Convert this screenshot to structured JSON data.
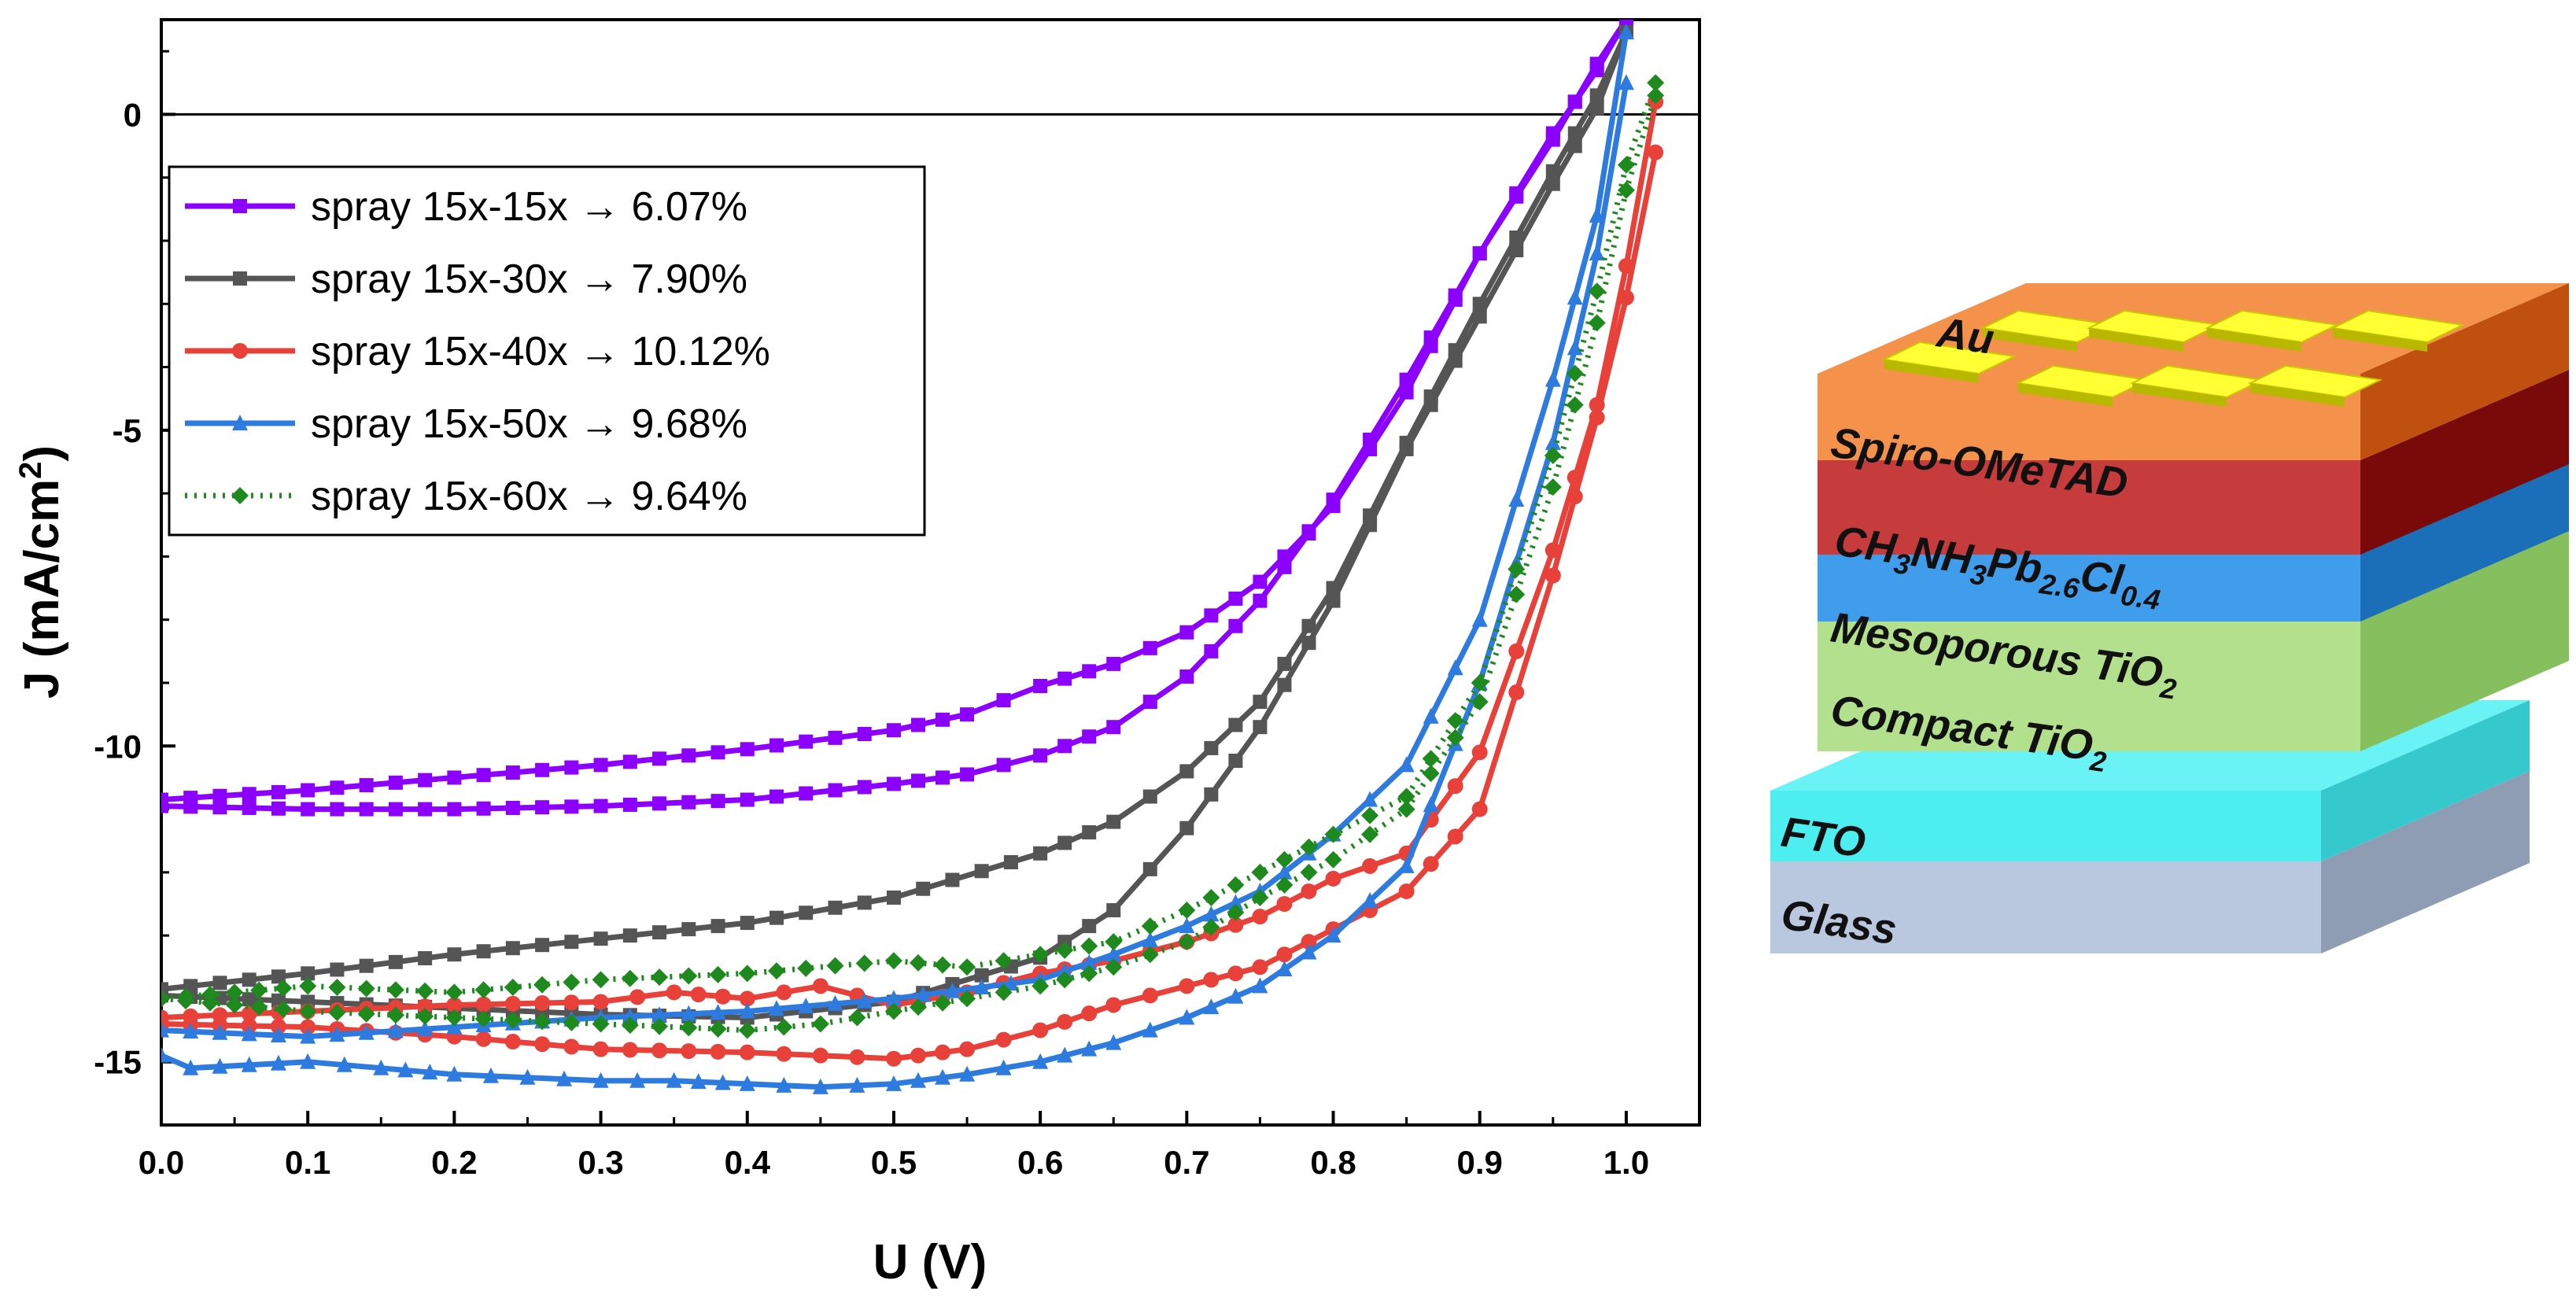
{
  "chart_data": {
    "type": "line",
    "title": "",
    "xlabel": "U (V)",
    "ylabel_main": "J (mA/cm",
    "ylabel_sup": "2",
    "ylabel_close": ")",
    "xlim": [
      0.0,
      1.05
    ],
    "ylim": [
      -16.0,
      1.5
    ],
    "xticks": [
      "0.0",
      "0.1",
      "0.2",
      "0.3",
      "0.4",
      "0.5",
      "0.6",
      "0.7",
      "0.8",
      "0.9",
      "1.0"
    ],
    "yticks": [
      "0",
      "-5",
      "-10",
      "-15"
    ],
    "legend_position": "top-left",
    "zero_line": true,
    "series": [
      {
        "name": "spray 15x-15x → 6.07%",
        "color": "#8B00FF",
        "marker": "square",
        "dotted": false,
        "forward": {
          "x": [
            0.0,
            0.1,
            0.2,
            0.3,
            0.4,
            0.5,
            0.55,
            0.6,
            0.65,
            0.7,
            0.75,
            0.8,
            0.85,
            0.9,
            0.95,
            0.98,
            1.0
          ],
          "y": [
            -10.85,
            -10.7,
            -10.5,
            -10.3,
            -10.05,
            -9.75,
            -9.5,
            -9.05,
            -8.7,
            -8.2,
            -7.4,
            -6.2,
            -4.4,
            -2.2,
            -0.3,
            0.7,
            1.5
          ]
        },
        "reverse": {
          "x": [
            0.0,
            0.1,
            0.2,
            0.3,
            0.4,
            0.5,
            0.55,
            0.6,
            0.65,
            0.7,
            0.75,
            0.8,
            0.85,
            0.9,
            0.95,
            0.98,
            1.0
          ],
          "y": [
            -10.95,
            -11.0,
            -11.0,
            -10.95,
            -10.85,
            -10.6,
            -10.45,
            -10.15,
            -9.7,
            -8.9,
            -7.7,
            -6.1,
            -4.2,
            -2.2,
            -0.4,
            0.8,
            1.5
          ]
        }
      },
      {
        "name": "spray 15x-30x → 7.90%",
        "color": "#555555",
        "marker": "square",
        "dotted": false,
        "forward": {
          "x": [
            0.0,
            0.1,
            0.2,
            0.3,
            0.4,
            0.5,
            0.6,
            0.65,
            0.7,
            0.75,
            0.8,
            0.85,
            0.9,
            0.95,
            0.98,
            1.0
          ],
          "y": [
            -13.85,
            -13.6,
            -13.3,
            -13.05,
            -12.8,
            -12.4,
            -11.7,
            -11.2,
            -10.4,
            -9.3,
            -7.5,
            -5.2,
            -3.0,
            -0.9,
            0.3,
            1.3
          ]
        },
        "reverse": {
          "x": [
            0.0,
            0.1,
            0.2,
            0.3,
            0.4,
            0.5,
            0.6,
            0.65,
            0.7,
            0.75,
            0.8,
            0.85,
            0.9,
            0.95,
            0.98,
            1.0
          ],
          "y": [
            -13.95,
            -14.05,
            -14.15,
            -14.25,
            -14.3,
            -14.05,
            -13.35,
            -12.6,
            -11.3,
            -9.7,
            -7.7,
            -5.3,
            -3.2,
            -1.1,
            0.1,
            1.3
          ]
        }
      },
      {
        "name": "spray 15x-40x → 10.12%",
        "color": "#E8413A",
        "marker": "circle",
        "dotted": false,
        "forward": {
          "x": [
            0.0,
            0.1,
            0.2,
            0.3,
            0.35,
            0.4,
            0.45,
            0.5,
            0.55,
            0.6,
            0.65,
            0.7,
            0.75,
            0.8,
            0.85,
            0.9,
            0.95,
            0.98,
            1.0,
            1.02
          ],
          "y": [
            -14.3,
            -14.2,
            -14.1,
            -14.05,
            -13.9,
            -14.0,
            -13.8,
            -14.1,
            -13.9,
            -13.6,
            -13.4,
            -13.1,
            -12.7,
            -12.1,
            -11.7,
            -10.1,
            -6.9,
            -4.6,
            -2.4,
            0.2
          ]
        },
        "reverse": {
          "x": [
            0.0,
            0.1,
            0.2,
            0.3,
            0.4,
            0.45,
            0.5,
            0.55,
            0.6,
            0.65,
            0.7,
            0.75,
            0.8,
            0.85,
            0.9,
            0.95,
            0.98,
            1.0,
            1.02
          ],
          "y": [
            -14.4,
            -14.45,
            -14.6,
            -14.8,
            -14.85,
            -14.9,
            -14.95,
            -14.8,
            -14.5,
            -14.1,
            -13.8,
            -13.5,
            -12.9,
            -12.3,
            -11.0,
            -7.3,
            -4.8,
            -2.9,
            -0.6
          ]
        }
      },
      {
        "name": "spray 15x-50x → 9.68%",
        "color": "#2E7BE0",
        "marker": "triangle",
        "dotted": false,
        "forward": {
          "x": [
            0.0,
            0.1,
            0.2,
            0.3,
            0.4,
            0.5,
            0.6,
            0.65,
            0.7,
            0.75,
            0.8,
            0.85,
            0.9,
            0.95,
            0.98,
            1.0
          ],
          "y": [
            -14.5,
            -14.6,
            -14.45,
            -14.3,
            -14.2,
            -14.0,
            -13.7,
            -13.3,
            -12.85,
            -12.3,
            -11.4,
            -10.3,
            -8.0,
            -4.2,
            -1.6,
            1.3
          ]
        },
        "reverse": {
          "x": [
            0.0,
            0.02,
            0.1,
            0.15,
            0.2,
            0.25,
            0.3,
            0.35,
            0.4,
            0.45,
            0.5,
            0.55,
            0.6,
            0.65,
            0.7,
            0.75,
            0.8,
            0.85,
            0.9,
            0.95,
            0.98,
            1.0
          ],
          "y": [
            -14.9,
            -15.1,
            -15.0,
            -15.1,
            -15.2,
            -15.25,
            -15.3,
            -15.3,
            -15.35,
            -15.4,
            -15.35,
            -15.2,
            -15.0,
            -14.7,
            -14.3,
            -13.8,
            -13.0,
            -11.9,
            -9.0,
            -5.2,
            -2.2,
            0.5
          ]
        }
      },
      {
        "name": "spray 15x-60x → 9.64%",
        "color": "#1E8A1E",
        "marker": "diamond",
        "dotted": true,
        "forward": {
          "x": [
            0.0,
            0.05,
            0.1,
            0.2,
            0.3,
            0.4,
            0.5,
            0.55,
            0.6,
            0.65,
            0.7,
            0.75,
            0.8,
            0.85,
            0.9,
            0.95,
            0.98,
            1.0,
            1.02
          ],
          "y": [
            -14.0,
            -13.9,
            -13.8,
            -13.9,
            -13.7,
            -13.6,
            -13.4,
            -13.5,
            -13.3,
            -13.1,
            -12.6,
            -12.0,
            -11.4,
            -10.8,
            -9.0,
            -5.4,
            -2.8,
            -0.8,
            0.5
          ]
        },
        "reverse": {
          "x": [
            0.0,
            0.05,
            0.1,
            0.2,
            0.3,
            0.4,
            0.45,
            0.5,
            0.55,
            0.6,
            0.65,
            0.7,
            0.75,
            0.8,
            0.85,
            0.9,
            0.95,
            0.98,
            1.0,
            1.02
          ],
          "y": [
            -14.0,
            -14.1,
            -14.2,
            -14.3,
            -14.4,
            -14.5,
            -14.4,
            -14.2,
            -14.0,
            -13.8,
            -13.5,
            -13.1,
            -12.4,
            -11.8,
            -11.0,
            -9.3,
            -5.9,
            -3.3,
            -1.2,
            0.3
          ]
        }
      }
    ]
  },
  "device_stack": {
    "electrode_label": "Au",
    "layers": [
      {
        "name": "spiro",
        "label": "Spiro-OMeTAD",
        "front": "#F4914B",
        "top": "#F4914B",
        "side": "#C05010"
      },
      {
        "name": "perovskite",
        "label_parts": [
          [
            "CH",
            ""
          ],
          [
            "3",
            "sub"
          ],
          [
            "NH",
            ""
          ],
          [
            "3",
            "sub"
          ],
          [
            "Pb",
            ""
          ],
          [
            "2.6",
            "sub"
          ],
          [
            "Cl",
            ""
          ],
          [
            "0.4",
            "sub"
          ]
        ],
        "front": "#C63B3B",
        "side": "#7A0A0A"
      },
      {
        "name": "mesoporous",
        "label_parts": [
          [
            "Mesoporous TiO",
            ""
          ],
          [
            "2",
            "sub"
          ]
        ],
        "front": "#3F9DEB",
        "side": "#1A6FB8"
      },
      {
        "name": "compact",
        "label_parts": [
          [
            "Compact TiO",
            ""
          ],
          [
            "2",
            "sub"
          ]
        ],
        "front": "#B3E08C",
        "side": "#86BF5E"
      },
      {
        "name": "fto",
        "label": "FTO",
        "front": "#4DEEF0",
        "top": "#6AF3F5",
        "side": "#35C8CC"
      },
      {
        "name": "glass",
        "label": "Glass",
        "front": "#B9C8DE",
        "side": "#8E9DB3"
      }
    ],
    "colors": {
      "gold_top": "#FFFF33",
      "gold_side": "#B8B800"
    }
  }
}
